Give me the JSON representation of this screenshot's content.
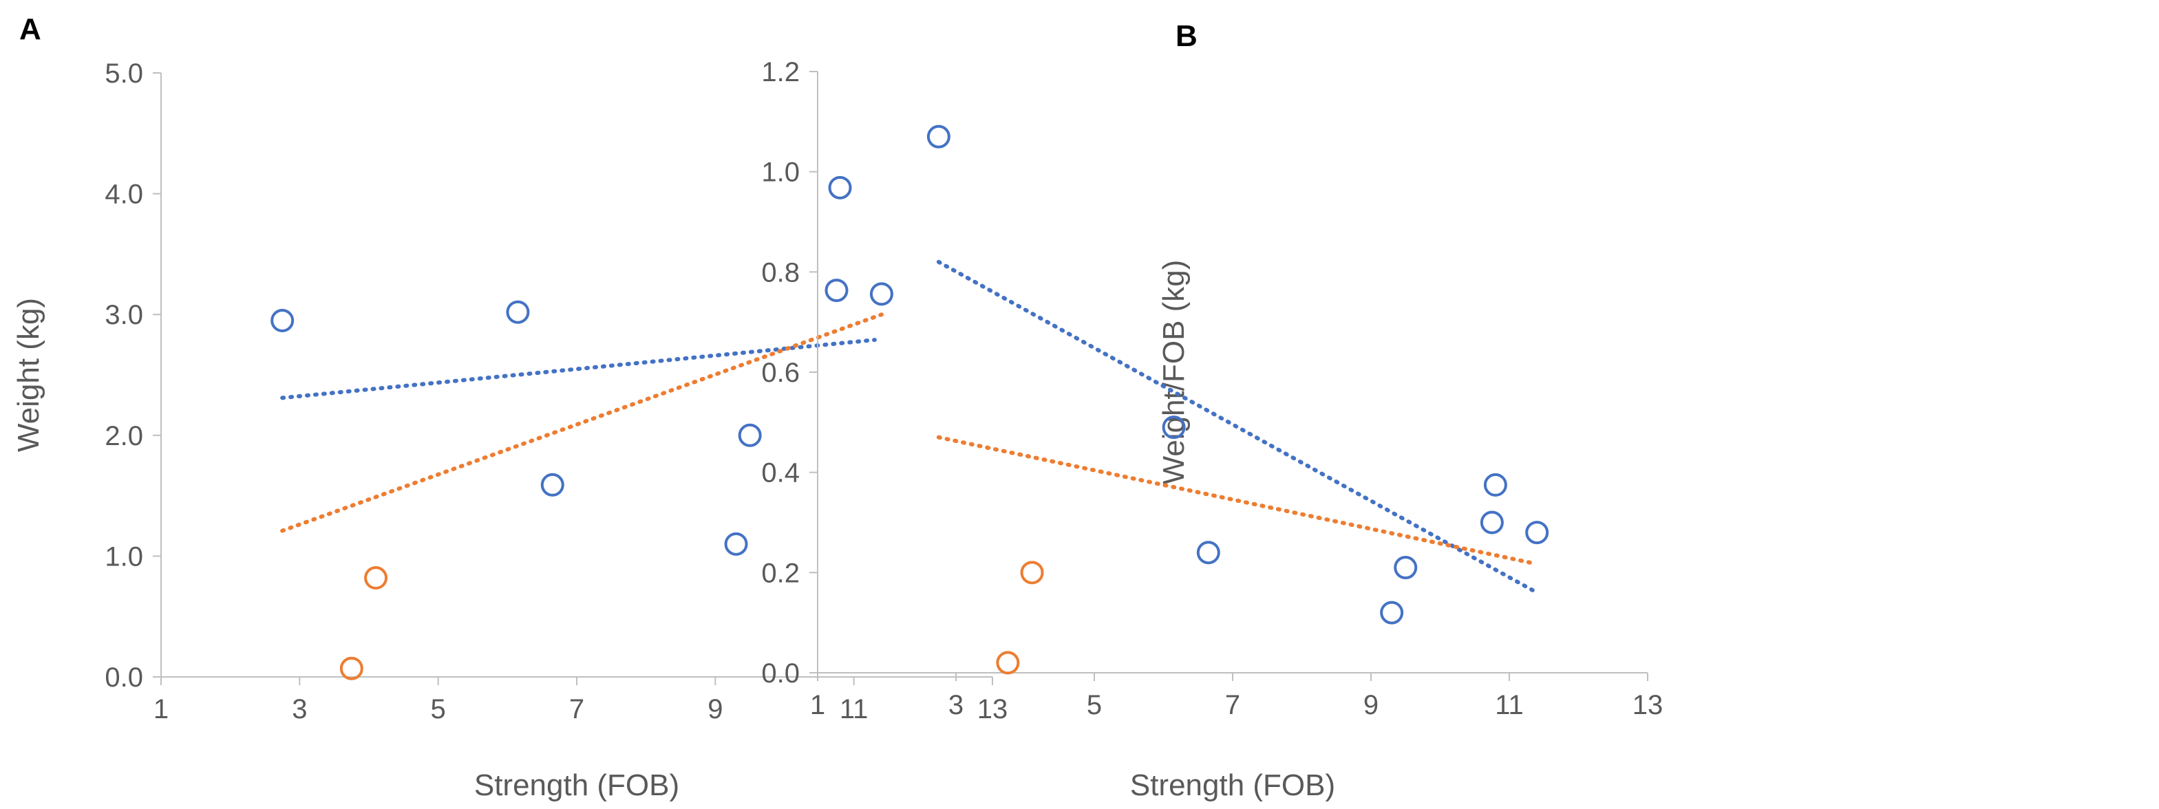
{
  "chart_data": [
    {
      "type": "scatter",
      "panel": "A",
      "xlabel": "Strength (FOB)",
      "ylabel": "Weight (kg)",
      "xlim": [
        1,
        13
      ],
      "ylim": [
        0,
        5
      ],
      "xticks": [
        1,
        3,
        5,
        7,
        9,
        11,
        13
      ],
      "yticks": [
        "0.0",
        "1.0",
        "2.0",
        "3.0",
        "4.0",
        "5.0"
      ],
      "series": [
        {
          "name": "blue",
          "color": "#4472C4",
          "x": [
            2.75,
            6.15,
            6.65,
            9.3,
            9.5,
            10.75,
            10.8,
            11.4
          ],
          "y": [
            2.95,
            3.02,
            1.59,
            1.1,
            2.0,
            3.2,
            4.05,
            3.17
          ],
          "trendline": {
            "x": [
              2.75,
              11.3
            ],
            "y": [
              2.31,
              2.79
            ]
          }
        },
        {
          "name": "orange",
          "color": "#ED7D31",
          "x": [
            3.75,
            4.1
          ],
          "y": [
            0.07,
            0.82
          ],
          "trendline": {
            "x": [
              2.75,
              11.4
            ],
            "y": [
              1.21,
              3.0
            ]
          }
        }
      ]
    },
    {
      "type": "scatter",
      "panel": "B",
      "xlabel": "Strength (FOB)",
      "ylabel": "Weight/FOB (kg)",
      "xlim": [
        1,
        13
      ],
      "ylim": [
        0,
        1.2
      ],
      "xticks": [
        1,
        3,
        5,
        7,
        9,
        11,
        13
      ],
      "yticks": [
        "0.0",
        "0.2",
        "0.4",
        "0.6",
        "0.8",
        "1.0",
        "1.2"
      ],
      "series": [
        {
          "name": "blue",
          "color": "#4472C4",
          "x": [
            2.75,
            6.15,
            6.65,
            9.3,
            9.5,
            10.75,
            10.8,
            11.4
          ],
          "y": [
            1.07,
            0.49,
            0.24,
            0.12,
            0.21,
            0.3,
            0.375,
            0.28
          ],
          "trendline": {
            "x": [
              2.75,
              11.4
            ],
            "y": [
              0.82,
              0.16
            ]
          }
        },
        {
          "name": "orange",
          "color": "#ED7D31",
          "x": [
            3.75,
            4.1
          ],
          "y": [
            0.02,
            0.2
          ],
          "trendline": {
            "x": [
              2.75,
              11.3
            ],
            "y": [
              0.47,
              0.22
            ]
          }
        }
      ]
    }
  ],
  "panels": [
    {
      "label": "A"
    },
    {
      "label": "B"
    }
  ]
}
